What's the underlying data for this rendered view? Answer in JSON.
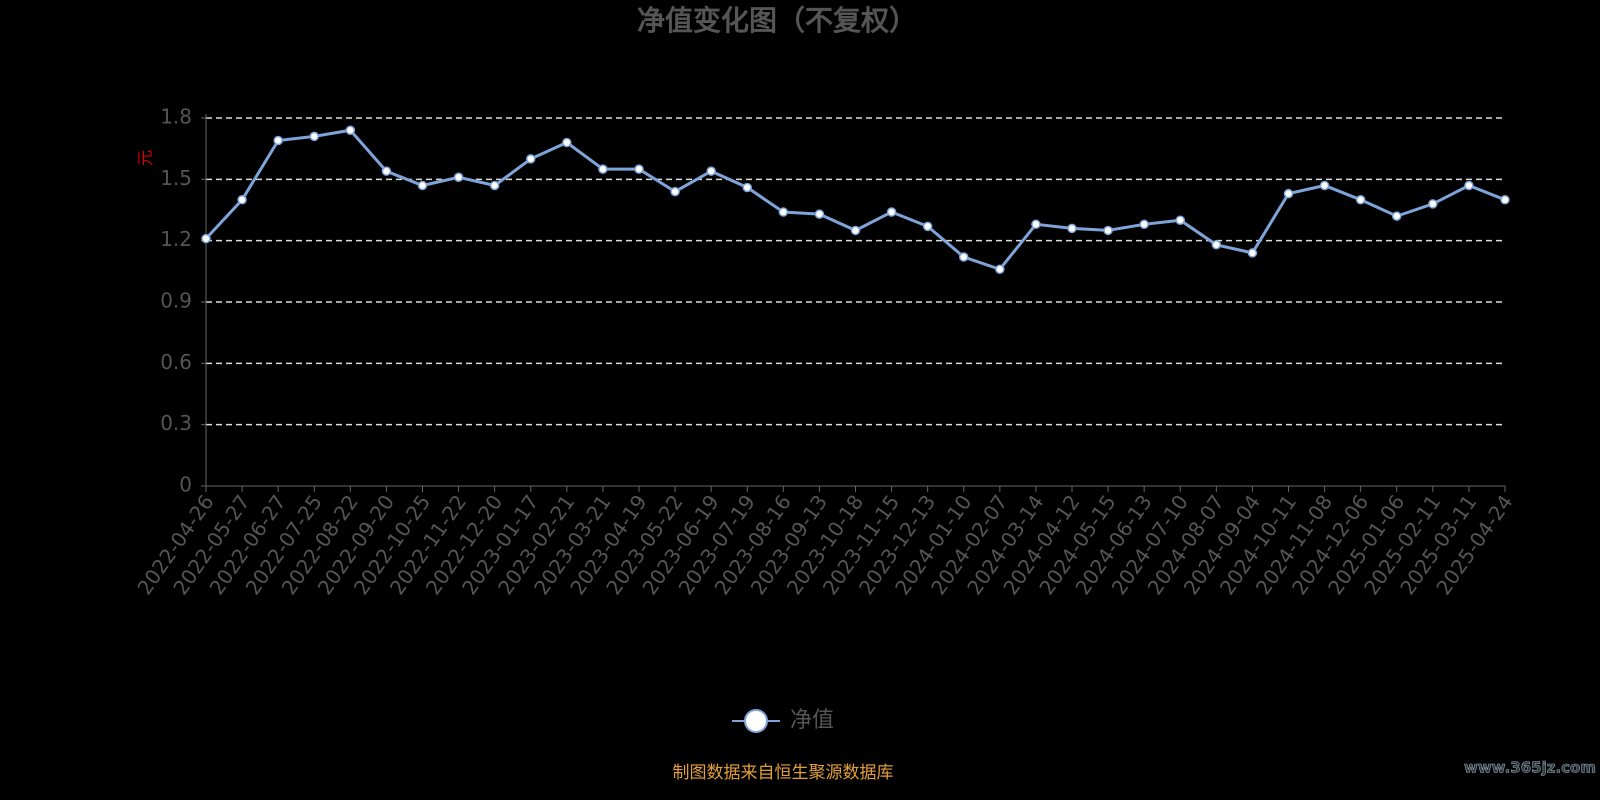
{
  "chart_data": {
    "type": "line",
    "title": "净值变化图（不复权）",
    "y_label": "元",
    "categories": [
      "2022-04-26",
      "2022-05-27",
      "2022-06-27",
      "2022-07-25",
      "2022-08-22",
      "2022-09-20",
      "2022-10-25",
      "2022-11-22",
      "2022-12-20",
      "2023-01-17",
      "2023-02-21",
      "2023-03-21",
      "2023-04-19",
      "2023-05-22",
      "2023-06-19",
      "2023-07-19",
      "2023-08-16",
      "2023-09-13",
      "2023-10-18",
      "2023-11-15",
      "2023-12-13",
      "2024-01-10",
      "2024-02-07",
      "2024-03-14",
      "2024-04-12",
      "2024-05-15",
      "2024-06-13",
      "2024-07-10",
      "2024-08-07",
      "2024-09-04",
      "2024-10-11",
      "2024-11-08",
      "2024-12-06",
      "2025-01-06",
      "2025-02-11",
      "2025-03-11",
      "2025-04-24"
    ],
    "series": [
      {
        "name": "净值",
        "color": "#7ea4d9",
        "values": [
          1.21,
          1.4,
          1.69,
          1.71,
          1.74,
          1.54,
          1.47,
          1.51,
          1.47,
          1.6,
          1.68,
          1.55,
          1.55,
          1.44,
          1.54,
          1.46,
          1.34,
          1.33,
          1.25,
          1.34,
          1.27,
          1.12,
          1.06,
          1.28,
          1.26,
          1.25,
          1.28,
          1.3,
          1.18,
          1.14,
          1.43,
          1.47,
          1.4,
          1.32,
          1.38,
          1.47,
          1.4
        ]
      }
    ],
    "ylim": [
      0,
      1.8
    ],
    "yticks": [
      0,
      0.3,
      0.6,
      0.9,
      1.2,
      1.5,
      1.8
    ],
    "grid": true,
    "source": "制图数据来自恒生聚源数据库",
    "watermark": "www.365jz.com"
  }
}
